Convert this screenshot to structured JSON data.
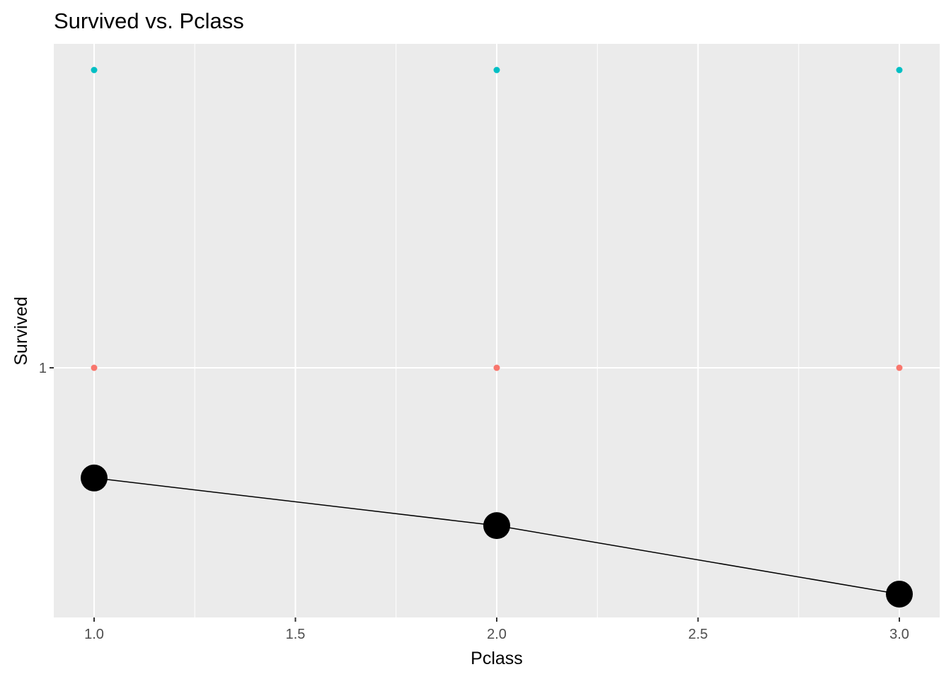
{
  "chart_data": {
    "type": "scatter",
    "title": "Survived vs. Pclass",
    "xlabel": "Pclass",
    "ylabel": "Survived",
    "xlim": [
      0.9,
      3.1
    ],
    "x_ticks": [
      1.0,
      1.5,
      2.0,
      2.5,
      3.0
    ],
    "x_tick_labels": [
      "1.0",
      "1.5",
      "2.0",
      "2.5",
      "3.0"
    ],
    "y_ticks": [
      1
    ],
    "y_tick_labels": [
      "1"
    ],
    "grid": true,
    "panel_background": "#ebebeb",
    "grid_color": "#ffffff",
    "series": [
      {
        "color": "#00bfc4",
        "x": [
          1,
          2,
          3
        ],
        "y": [
          2,
          2,
          2
        ],
        "kind": "points"
      },
      {
        "color": "#f8766d",
        "x": [
          1,
          2,
          3
        ],
        "y": [
          1,
          1,
          1
        ],
        "kind": "points"
      },
      {
        "color": "#000000",
        "x": [
          1,
          2,
          3
        ],
        "y": [
          0.63,
          0.47,
          0.24
        ],
        "kind": "line+points"
      }
    ]
  }
}
